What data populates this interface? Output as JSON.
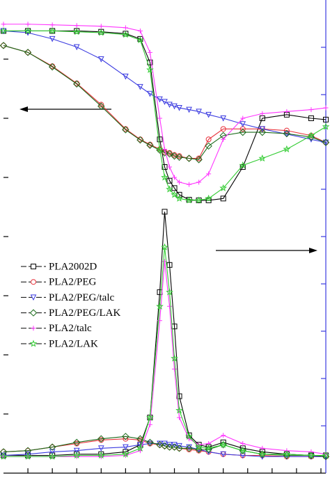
{
  "chart_data": {
    "type": "line",
    "x": [
      20,
      30,
      40,
      50,
      60,
      70,
      76,
      80,
      84,
      86,
      88,
      90,
      92,
      96,
      100,
      104,
      110,
      118,
      126,
      136,
      146,
      152
    ],
    "xlim": [
      20,
      152
    ],
    "xticks": [
      30,
      40,
      50,
      60,
      70,
      80,
      90,
      100,
      110,
      120,
      130,
      140,
      150
    ],
    "ylim": [
      1,
      100000000
    ],
    "yticks": [
      10,
      100,
      1000,
      10000,
      100000,
      1000000,
      10000000
    ],
    "ylog": true,
    "y2lim": [
      0,
      4
    ],
    "y2ticks": [
      0.4,
      0.8,
      1.2,
      1.6,
      2,
      2.4,
      2.8,
      3.2,
      3.6
    ],
    "legend": "middle-left",
    "series": [
      {
        "name": "PLA2002D",
        "color": "#000000",
        "marker": "square",
        "values": [
          30000000,
          30000000,
          30000000,
          30000000,
          29000000,
          27000000,
          22000000,
          8800000,
          440000,
          150000,
          88000,
          66000,
          51000,
          42000,
          41000,
          41000,
          44000,
          150000,
          1000000,
          1150000,
          1000000,
          950000
        ],
        "y2_values": [
          0.15,
          0.15,
          0.15,
          0.16,
          0.16,
          0.18,
          0.24,
          0.47,
          1.53,
          2.21,
          1.76,
          1.24,
          0.65,
          0.32,
          0.24,
          0.22,
          0.26,
          0.21,
          0.18,
          0.16,
          0.15,
          0.15
        ]
      },
      {
        "name": "PLA2/PEG",
        "color": "#e8303a",
        "marker": "circle",
        "values": [
          17000000,
          13000000,
          7600000,
          3900000,
          1700000,
          660000,
          440000,
          360000,
          300000,
          270000,
          260000,
          240000,
          230000,
          210000,
          210000,
          440000,
          660000,
          660000,
          660000,
          620000,
          510000,
          390000
        ],
        "y2_values": [
          0.18,
          0.19,
          0.22,
          0.25,
          0.28,
          0.29,
          0.28,
          0.25,
          0.24,
          0.23,
          0.22,
          0.22,
          0.21,
          0.2,
          0.19,
          0.18,
          0.16,
          0.15,
          0.15,
          0.14,
          0.14,
          0.14
        ]
      },
      {
        "name": "PLA2/PEG/talc",
        "color": "#3a3ae0",
        "marker": "triangle",
        "values": [
          30000000,
          28000000,
          22000000,
          16000000,
          10000000,
          5100000,
          3400000,
          2600000,
          2100000,
          1900000,
          1700000,
          1600000,
          1500000,
          1400000,
          1300000,
          1150000,
          1000000,
          800000,
          660000,
          540000,
          440000,
          390000
        ],
        "y2_values": [
          0.15,
          0.16,
          0.18,
          0.19,
          0.21,
          0.22,
          0.24,
          0.25,
          0.25,
          0.25,
          0.24,
          0.24,
          0.23,
          0.22,
          0.2,
          0.18,
          0.16,
          0.15,
          0.14,
          0.14,
          0.14,
          0.14
        ]
      },
      {
        "name": "PLA2/PEG/LAK",
        "color": "#1a6a1a",
        "marker": "diamond",
        "values": [
          17000000,
          13000000,
          7400000,
          3800000,
          1600000,
          640000,
          430000,
          350000,
          290000,
          260000,
          250000,
          230000,
          220000,
          210000,
          200000,
          340000,
          510000,
          580000,
          580000,
          550000,
          480000,
          390000
        ],
        "y2_values": [
          0.18,
          0.19,
          0.22,
          0.26,
          0.29,
          0.31,
          0.29,
          0.26,
          0.24,
          0.23,
          0.22,
          0.22,
          0.21,
          0.21,
          0.2,
          0.2,
          0.24,
          0.19,
          0.16,
          0.15,
          0.15,
          0.14
        ]
      },
      {
        "name": "PLA2/talc",
        "color": "#ff33ff",
        "marker": "plus",
        "values": [
          39000000,
          39000000,
          38000000,
          37000000,
          36000000,
          34000000,
          30000000,
          13000000,
          1000000,
          300000,
          150000,
          100000,
          83000,
          76000,
          83000,
          115000,
          440000,
          1000000,
          1200000,
          1300000,
          1400000,
          1500000
        ],
        "y2_values": [
          0.14,
          0.14,
          0.14,
          0.14,
          0.14,
          0.15,
          0.19,
          0.41,
          1.29,
          1.79,
          1.41,
          0.88,
          0.47,
          0.29,
          0.24,
          0.25,
          0.32,
          0.25,
          0.21,
          0.19,
          0.18,
          0.16
        ]
      },
      {
        "name": "PLA2/LAK",
        "color": "#33cc33",
        "marker": "star",
        "values": [
          30000000,
          30000000,
          30000000,
          29000000,
          28000000,
          26000000,
          21000000,
          6600000,
          300000,
          100000,
          63000,
          51000,
          44000,
          41000,
          41000,
          44000,
          66000,
          160000,
          210000,
          300000,
          510000,
          720000
        ],
        "y2_values": [
          0.14,
          0.14,
          0.14,
          0.15,
          0.15,
          0.16,
          0.21,
          0.47,
          1.41,
          1.91,
          1.53,
          0.97,
          0.53,
          0.31,
          0.22,
          0.21,
          0.24,
          0.19,
          0.16,
          0.16,
          0.15,
          0.15
        ]
      }
    ]
  }
}
